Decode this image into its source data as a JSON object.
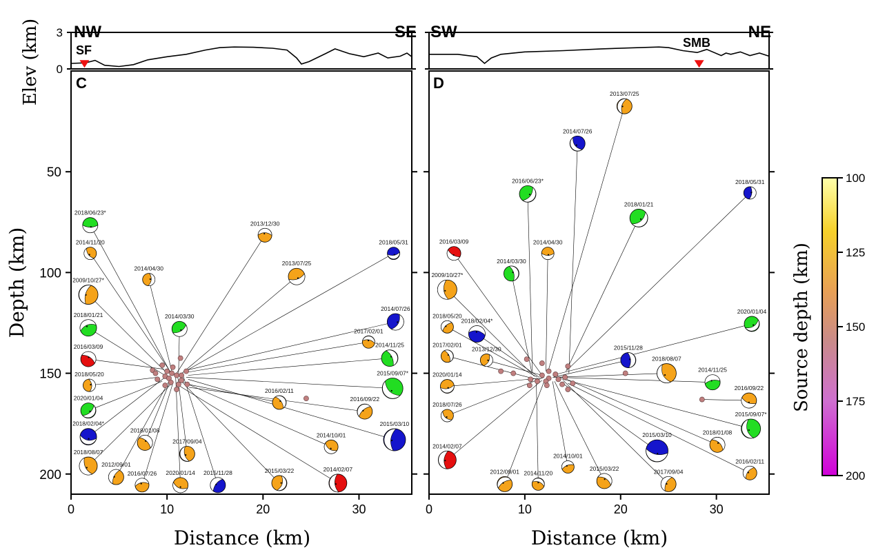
{
  "figure": {
    "y_axis_label_depth": "Depth (km)",
    "y_axis_label_elev": "Elev (km)",
    "x_axis_label": "Distance (km)",
    "colorbar_label": "Source depth (km)",
    "colorbar_ticks": [
      "100",
      "125",
      "150",
      "175",
      "200"
    ],
    "colorbar_range": [
      100,
      200
    ],
    "colors": {
      "orange": "#f5a31a",
      "green": "#22dd22",
      "blue": "#1515cc",
      "red": "#e50f0f",
      "station": "#ee1111",
      "cluster": "#c07f7f"
    }
  },
  "chart_data": [
    {
      "type": "scatter",
      "panel": "C",
      "profile_left": "NW",
      "profile_right": "SE",
      "station": {
        "name": "SF",
        "x": 1.4
      },
      "xlim": [
        0,
        35.5
      ],
      "ylim": [
        210,
        0
      ],
      "elev_ylim": [
        0,
        3
      ],
      "x_ticks": [
        "0",
        "10",
        "20",
        "30"
      ],
      "y_ticks": [
        "50",
        "100",
        "150",
        "200"
      ],
      "elev_ticks": [
        "0",
        "3"
      ],
      "topography": [
        [
          0,
          0.45
        ],
        [
          1.5,
          0.5
        ],
        [
          2.5,
          0.7
        ],
        [
          3.5,
          0.3
        ],
        [
          5,
          0.2
        ],
        [
          6.5,
          0.35
        ],
        [
          8,
          0.75
        ],
        [
          10,
          1.0
        ],
        [
          12,
          1.2
        ],
        [
          14,
          1.55
        ],
        [
          15.5,
          1.75
        ],
        [
          17,
          1.8
        ],
        [
          19,
          1.78
        ],
        [
          21,
          1.7
        ],
        [
          22.5,
          1.55
        ],
        [
          23.5,
          0.9
        ],
        [
          24,
          0.4
        ],
        [
          24.8,
          0.6
        ],
        [
          26.5,
          1.25
        ],
        [
          27.5,
          1.65
        ],
        [
          29,
          1.25
        ],
        [
          30.5,
          1.0
        ],
        [
          32,
          1.3
        ],
        [
          33,
          0.9
        ],
        [
          34.3,
          1.05
        ],
        [
          35,
          1.3
        ],
        [
          35.5,
          1.0
        ]
      ],
      "cluster_points": [
        [
          8.5,
          148.5
        ],
        [
          9.5,
          146
        ],
        [
          10,
          149
        ],
        [
          10.5,
          150
        ],
        [
          11,
          151
        ],
        [
          9.8,
          151.5
        ],
        [
          10.2,
          152.5
        ],
        [
          11.5,
          151
        ],
        [
          12,
          149
        ],
        [
          9,
          153
        ],
        [
          10.4,
          154.5
        ],
        [
          11.5,
          153.5
        ],
        [
          9.8,
          156
        ],
        [
          8.8,
          150
        ],
        [
          11.2,
          155.5
        ],
        [
          10.6,
          147
        ],
        [
          11.4,
          142.5
        ],
        [
          12.1,
          155.5
        ],
        [
          11,
          158
        ],
        [
          24.5,
          162.5
        ]
      ],
      "mechanisms": [
        {
          "label": "2018/06/23*",
          "x": 2.0,
          "y": 76.5,
          "r": 11,
          "color": "green",
          "ex": 10.4,
          "ey": 150
        },
        {
          "label": "2014/11/20",
          "x": 2.0,
          "y": 90.5,
          "r": 9,
          "color": "orange",
          "ex": 10.6,
          "ey": 151
        },
        {
          "label": "2009/10/27*",
          "x": 1.8,
          "y": 111,
          "r": 14,
          "color": "orange",
          "ex": 10.0,
          "ey": 150
        },
        {
          "label": "2018/01/21",
          "x": 1.8,
          "y": 127.5,
          "r": 12,
          "color": "green",
          "ex": 10.1,
          "ey": 152
        },
        {
          "label": "2016/03/09",
          "x": 1.8,
          "y": 143,
          "r": 11,
          "color": "red",
          "ex": 9.7,
          "ey": 148
        },
        {
          "label": "2018/05/20",
          "x": 1.9,
          "y": 156,
          "r": 9,
          "color": "orange",
          "ex": 9.0,
          "ey": 152
        },
        {
          "label": "2020/01/04",
          "x": 1.8,
          "y": 168.5,
          "r": 11,
          "color": "green",
          "ex": 9.5,
          "ey": 154
        },
        {
          "label": "2018/02/04*",
          "x": 1.8,
          "y": 181.5,
          "r": 12,
          "color": "blue",
          "ex": 9.8,
          "ey": 152
        },
        {
          "label": "2018/08/07",
          "x": 1.8,
          "y": 196,
          "r": 13,
          "color": "orange",
          "ex": 10.5,
          "ey": 155
        },
        {
          "label": "2012/09/01",
          "x": 4.7,
          "y": 201.5,
          "r": 11,
          "color": "orange",
          "ex": 10.2,
          "ey": 154
        },
        {
          "label": "2016/07/26",
          "x": 7.4,
          "y": 205.5,
          "r": 10,
          "color": "orange",
          "ex": 10.6,
          "ey": 155
        },
        {
          "label": "2018/01/08",
          "x": 7.7,
          "y": 184.5,
          "r": 11,
          "color": "orange",
          "ex": 10.4,
          "ey": 153
        },
        {
          "label": "2014/04/30",
          "x": 8.1,
          "y": 103.5,
          "r": 9,
          "color": "orange",
          "ex": 10.5,
          "ey": 149
        },
        {
          "label": "2014/03/30",
          "x": 11.3,
          "y": 128,
          "r": 11,
          "color": "green",
          "ex": 11.2,
          "ey": 150
        },
        {
          "label": "2020/01/14",
          "x": 11.4,
          "y": 205.5,
          "r": 11,
          "color": "orange",
          "ex": 10.9,
          "ey": 152
        },
        {
          "label": "2017/09/04",
          "x": 12.1,
          "y": 190,
          "r": 11,
          "color": "orange",
          "ex": 11.1,
          "ey": 151
        },
        {
          "label": "2015/11/28",
          "x": 15.3,
          "y": 205.5,
          "r": 11,
          "color": "blue",
          "ex": 11.6,
          "ey": 150
        },
        {
          "label": "2013/12/30",
          "x": 20.2,
          "y": 81.5,
          "r": 10,
          "color": "orange",
          "ex": 11.0,
          "ey": 150
        },
        {
          "label": "2016/02/11",
          "x": 21.7,
          "y": 164.5,
          "r": 10,
          "color": "orange",
          "ex": 12.2,
          "ey": 155.5
        },
        {
          "label": "2015/03/22",
          "x": 21.7,
          "y": 204.5,
          "r": 11,
          "color": "orange",
          "ex": 11.4,
          "ey": 153.5
        },
        {
          "label": "2013/07/25",
          "x": 23.5,
          "y": 102,
          "r": 12,
          "color": "orange",
          "ex": 11.3,
          "ey": 151
        },
        {
          "label": "2014/10/01",
          "x": 27.1,
          "y": 186.5,
          "r": 10,
          "color": "orange",
          "ex": 11.5,
          "ey": 154
        },
        {
          "label": "2014/02/07",
          "x": 27.8,
          "y": 204.5,
          "r": 13,
          "color": "red",
          "ex": 11.2,
          "ey": 156
        },
        {
          "label": "2016/09/22",
          "x": 30.6,
          "y": 169,
          "r": 11,
          "color": "orange",
          "ex": 12.3,
          "ey": 157
        },
        {
          "label": "2017/02/01",
          "x": 31.0,
          "y": 134.5,
          "r": 9,
          "color": "orange",
          "ex": 12.1,
          "ey": 149.5
        },
        {
          "label": "2014/11/25",
          "x": 33.2,
          "y": 142.5,
          "r": 12,
          "color": "green",
          "ex": 12.2,
          "ey": 151
        },
        {
          "label": "2014/07/26",
          "x": 33.8,
          "y": 124.5,
          "r": 12,
          "color": "blue",
          "ex": 12.0,
          "ey": 148.5
        },
        {
          "label": "2018/05/31",
          "x": 33.6,
          "y": 90.5,
          "r": 9,
          "color": "blue",
          "ex": 11.9,
          "ey": 149
        },
        {
          "label": "2015/09/07*",
          "x": 33.5,
          "y": 157.5,
          "r": 15,
          "color": "green",
          "ex": 12.0,
          "ey": 152
        },
        {
          "label": "2015/03/10",
          "x": 33.7,
          "y": 183,
          "r": 16,
          "color": "blue",
          "ex": 12.2,
          "ey": 153
        }
      ]
    },
    {
      "type": "scatter",
      "panel": "D",
      "profile_left": "SW",
      "profile_right": "NE",
      "station": {
        "name": "SMB",
        "x": 28.2
      },
      "xlim": [
        0,
        35.5
      ],
      "ylim": [
        210,
        0
      ],
      "elev_ylim": [
        0,
        3
      ],
      "x_ticks": [
        "0",
        "10",
        "20",
        "30"
      ],
      "y_ticks": [
        "50",
        "100",
        "150",
        "200"
      ],
      "elev_ticks": [
        "0",
        "3"
      ],
      "topography": [
        [
          0,
          1.2
        ],
        [
          3,
          1.2
        ],
        [
          5,
          1.0
        ],
        [
          5.8,
          0.45
        ],
        [
          6.5,
          0.9
        ],
        [
          7.5,
          1.2
        ],
        [
          10,
          1.4
        ],
        [
          14,
          1.5
        ],
        [
          18,
          1.65
        ],
        [
          22,
          1.75
        ],
        [
          24,
          1.8
        ],
        [
          25,
          1.75
        ],
        [
          26.5,
          1.5
        ],
        [
          28,
          1.35
        ],
        [
          29,
          1.6
        ],
        [
          30.5,
          1.1
        ],
        [
          31,
          1.3
        ],
        [
          31.5,
          1.2
        ],
        [
          32.5,
          1.4
        ],
        [
          33.5,
          1.1
        ],
        [
          34.5,
          1.3
        ],
        [
          35.5,
          1.05
        ]
      ],
      "cluster_points": [
        [
          10.2,
          143
        ],
        [
          11.8,
          145
        ],
        [
          14.5,
          146.5
        ],
        [
          12.5,
          149
        ],
        [
          13.2,
          150.5
        ],
        [
          11.8,
          151
        ],
        [
          12.5,
          152.5
        ],
        [
          10.6,
          153
        ],
        [
          13.5,
          153
        ],
        [
          11.3,
          154
        ],
        [
          12.2,
          154
        ],
        [
          14.2,
          152
        ],
        [
          15,
          155
        ],
        [
          12.3,
          156
        ],
        [
          10.5,
          156
        ],
        [
          13.9,
          155.5
        ],
        [
          14.5,
          158
        ],
        [
          8.8,
          150
        ],
        [
          7.5,
          149
        ],
        [
          20.5,
          150
        ],
        [
          28.5,
          163
        ]
      ],
      "mechanisms": [
        {
          "label": "2016/03/09",
          "x": 2.6,
          "y": 90.5,
          "r": 10,
          "color": "red",
          "ex": 11.8,
          "ey": 151
        },
        {
          "label": "2009/10/27*",
          "x": 1.9,
          "y": 108.5,
          "r": 14,
          "color": "orange",
          "ex": 11.0,
          "ey": 151.5
        },
        {
          "label": "2018/05/20",
          "x": 1.9,
          "y": 127,
          "r": 9,
          "color": "orange",
          "ex": 11.3,
          "ey": 152
        },
        {
          "label": "2018/02/04*",
          "x": 5.0,
          "y": 130.5,
          "r": 12,
          "color": "blue",
          "ex": 11.5,
          "ey": 152
        },
        {
          "label": "2017/02/01",
          "x": 1.9,
          "y": 141.5,
          "r": 9,
          "color": "orange",
          "ex": 11.2,
          "ey": 153
        },
        {
          "label": "2013/12/30",
          "x": 6.0,
          "y": 143.5,
          "r": 9,
          "color": "orange",
          "ex": 11.8,
          "ey": 151
        },
        {
          "label": "2020/01/14",
          "x": 1.9,
          "y": 156.5,
          "r": 10,
          "color": "orange",
          "ex": 11.6,
          "ey": 152.5
        },
        {
          "label": "2018/07/26",
          "x": 1.9,
          "y": 171,
          "r": 9,
          "color": "orange",
          "ex": 12.0,
          "ey": 152
        },
        {
          "label": "2014/02/07",
          "x": 1.9,
          "y": 193,
          "r": 13,
          "color": "red",
          "ex": 11.8,
          "ey": 153.5
        },
        {
          "label": "2012/09/01",
          "x": 7.9,
          "y": 205,
          "r": 11,
          "color": "orange",
          "ex": 12.1,
          "ey": 153
        },
        {
          "label": "2014/11/20",
          "x": 11.4,
          "y": 205,
          "r": 9,
          "color": "orange",
          "ex": 11.2,
          "ey": 154
        },
        {
          "label": "2014/03/30",
          "x": 8.6,
          "y": 100.5,
          "r": 11,
          "color": "green",
          "ex": 10.7,
          "ey": 149
        },
        {
          "label": "2016/06/23*",
          "x": 10.3,
          "y": 61,
          "r": 12,
          "color": "green",
          "ex": 10.8,
          "ey": 150
        },
        {
          "label": "2014/04/30",
          "x": 12.4,
          "y": 90.5,
          "r": 9,
          "color": "orange",
          "ex": 12.2,
          "ey": 149
        },
        {
          "label": "2014/07/26",
          "x": 15.5,
          "y": 36,
          "r": 11,
          "color": "blue",
          "ex": 14.6,
          "ey": 150
        },
        {
          "label": "2013/07/25",
          "x": 20.4,
          "y": 17.5,
          "r": 11,
          "color": "orange",
          "ex": 12.4,
          "ey": 149.5
        },
        {
          "label": "2014/10/01",
          "x": 14.5,
          "y": 196.5,
          "r": 9,
          "color": "orange",
          "ex": 12.9,
          "ey": 154
        },
        {
          "label": "2015/03/22",
          "x": 18.3,
          "y": 203.5,
          "r": 11,
          "color": "orange",
          "ex": 13.1,
          "ey": 154
        },
        {
          "label": "2015/11/28",
          "x": 20.8,
          "y": 143.5,
          "r": 11,
          "color": "blue",
          "ex": 12.9,
          "ey": 152
        },
        {
          "label": "2018/01/21",
          "x": 21.9,
          "y": 73,
          "r": 13,
          "color": "green",
          "ex": 14.3,
          "ey": 149
        },
        {
          "label": "2015/03/10",
          "x": 23.8,
          "y": 188.5,
          "r": 16,
          "color": "blue",
          "ex": 13.8,
          "ey": 154.5
        },
        {
          "label": "2018/08/07",
          "x": 24.8,
          "y": 150,
          "r": 14,
          "color": "orange",
          "ex": 13.0,
          "ey": 152
        },
        {
          "label": "2017/09/04",
          "x": 25.0,
          "y": 205,
          "r": 11,
          "color": "orange",
          "ex": 14.0,
          "ey": 153.5
        },
        {
          "label": "2014/11/25",
          "x": 29.6,
          "y": 154.5,
          "r": 11,
          "color": "green",
          "ex": 13.3,
          "ey": 152
        },
        {
          "label": "2018/01/08",
          "x": 30.1,
          "y": 185.5,
          "r": 11,
          "color": "orange",
          "ex": 14.4,
          "ey": 153
        },
        {
          "label": "2018/05/31",
          "x": 33.5,
          "y": 60.5,
          "r": 9,
          "color": "blue",
          "ex": 14.4,
          "ey": 148.5
        },
        {
          "label": "2020/01/04",
          "x": 33.7,
          "y": 125.5,
          "r": 11,
          "color": "green",
          "ex": 12.9,
          "ey": 151
        },
        {
          "label": "2016/09/22",
          "x": 33.4,
          "y": 163.5,
          "r": 11,
          "color": "orange",
          "ex": 28.5,
          "ey": 163
        },
        {
          "label": "2015/09/07*",
          "x": 33.6,
          "y": 177.5,
          "r": 14,
          "color": "green",
          "ex": 13.6,
          "ey": 152.5
        },
        {
          "label": "2016/02/11",
          "x": 33.5,
          "y": 199.5,
          "r": 10,
          "color": "orange",
          "ex": 14.5,
          "ey": 155
        }
      ]
    }
  ]
}
